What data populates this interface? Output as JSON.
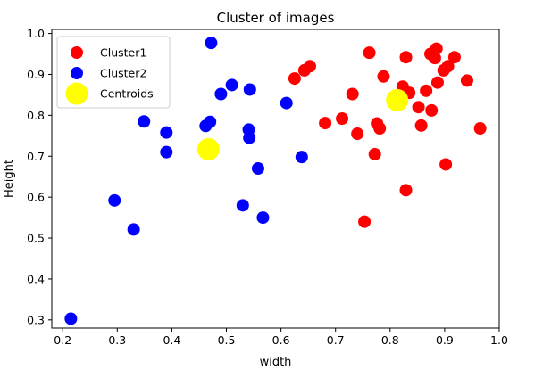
{
  "chart_data": {
    "type": "scatter",
    "title": "Cluster of images",
    "xlabel": "width",
    "ylabel": "Height",
    "xlim": [
      0.18,
      1.0
    ],
    "ylim": [
      0.28,
      1.01
    ],
    "xticks": [
      "0.2",
      "0.3",
      "0.4",
      "0.5",
      "0.6",
      "0.7",
      "0.8",
      "0.9",
      "1.0"
    ],
    "yticks": [
      "0.3",
      "0.4",
      "0.5",
      "0.6",
      "0.7",
      "0.8",
      "0.9",
      "1.0"
    ],
    "grid": false,
    "legend_position": "top-left",
    "series": [
      {
        "name": "Cluster1",
        "color": "#ff0000",
        "marker": "circle",
        "points": [
          [
            0.625,
            0.89
          ],
          [
            0.643,
            0.91
          ],
          [
            0.653,
            0.92
          ],
          [
            0.681,
            0.781
          ],
          [
            0.712,
            0.792
          ],
          [
            0.731,
            0.852
          ],
          [
            0.74,
            0.755
          ],
          [
            0.753,
            0.54
          ],
          [
            0.762,
            0.953
          ],
          [
            0.772,
            0.705
          ],
          [
            0.776,
            0.78
          ],
          [
            0.781,
            0.768
          ],
          [
            0.788,
            0.895
          ],
          [
            0.813,
            0.84
          ],
          [
            0.823,
            0.87
          ],
          [
            0.829,
            0.942
          ],
          [
            0.829,
            0.617
          ],
          [
            0.835,
            0.855
          ],
          [
            0.852,
            0.82
          ],
          [
            0.857,
            0.775
          ],
          [
            0.866,
            0.86
          ],
          [
            0.874,
            0.95
          ],
          [
            0.876,
            0.812
          ],
          [
            0.882,
            0.94
          ],
          [
            0.885,
            0.963
          ],
          [
            0.887,
            0.88
          ],
          [
            0.898,
            0.91
          ],
          [
            0.902,
            0.68
          ],
          [
            0.906,
            0.92
          ],
          [
            0.918,
            0.942
          ],
          [
            0.941,
            0.885
          ],
          [
            0.965,
            0.768
          ]
        ]
      },
      {
        "name": "Cluster2",
        "color": "#0000ff",
        "marker": "circle",
        "points": [
          [
            0.215,
            0.303
          ],
          [
            0.295,
            0.592
          ],
          [
            0.33,
            0.521
          ],
          [
            0.349,
            0.785
          ],
          [
            0.39,
            0.758
          ],
          [
            0.39,
            0.71
          ],
          [
            0.462,
            0.774
          ],
          [
            0.47,
            0.784
          ],
          [
            0.472,
            0.977
          ],
          [
            0.49,
            0.852
          ],
          [
            0.51,
            0.874
          ],
          [
            0.53,
            0.58
          ],
          [
            0.541,
            0.765
          ],
          [
            0.542,
            0.745
          ],
          [
            0.543,
            0.863
          ],
          [
            0.558,
            0.67
          ],
          [
            0.567,
            0.55
          ],
          [
            0.61,
            0.83
          ],
          [
            0.638,
            0.698
          ]
        ]
      },
      {
        "name": "Centroids",
        "color": "#ffff00",
        "marker": "large-circle",
        "points": [
          [
            0.467,
            0.717
          ],
          [
            0.813,
            0.837
          ]
        ]
      }
    ]
  }
}
